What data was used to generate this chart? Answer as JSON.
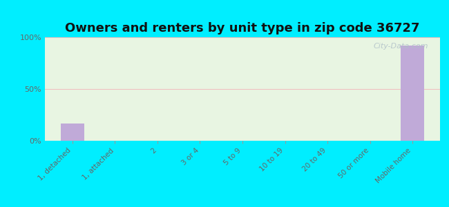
{
  "title": "Owners and renters by unit type in zip code 36727",
  "categories": [
    "1, detached",
    "1, attached",
    "2",
    "3 or 4",
    "5 to 9",
    "10 to 19",
    "20 to 49",
    "50 or more",
    "Mobile home"
  ],
  "values": [
    17,
    0,
    0,
    0,
    0,
    0,
    0,
    0,
    92
  ],
  "bar_color": "#c0aad8",
  "fig_bg_color": "#00eeff",
  "plot_bg_color": "#e8f5e2",
  "grid_color": "#f0c0c0",
  "yticks": [
    0,
    50,
    100
  ],
  "ylim": [
    0,
    100
  ],
  "title_fontsize": 13,
  "tick_fontsize": 7.5,
  "ytick_fontsize": 8,
  "watermark": "City-Data.com",
  "watermark_color": "#b0c0c8",
  "title_color": "#111111",
  "tick_color": "#666666"
}
